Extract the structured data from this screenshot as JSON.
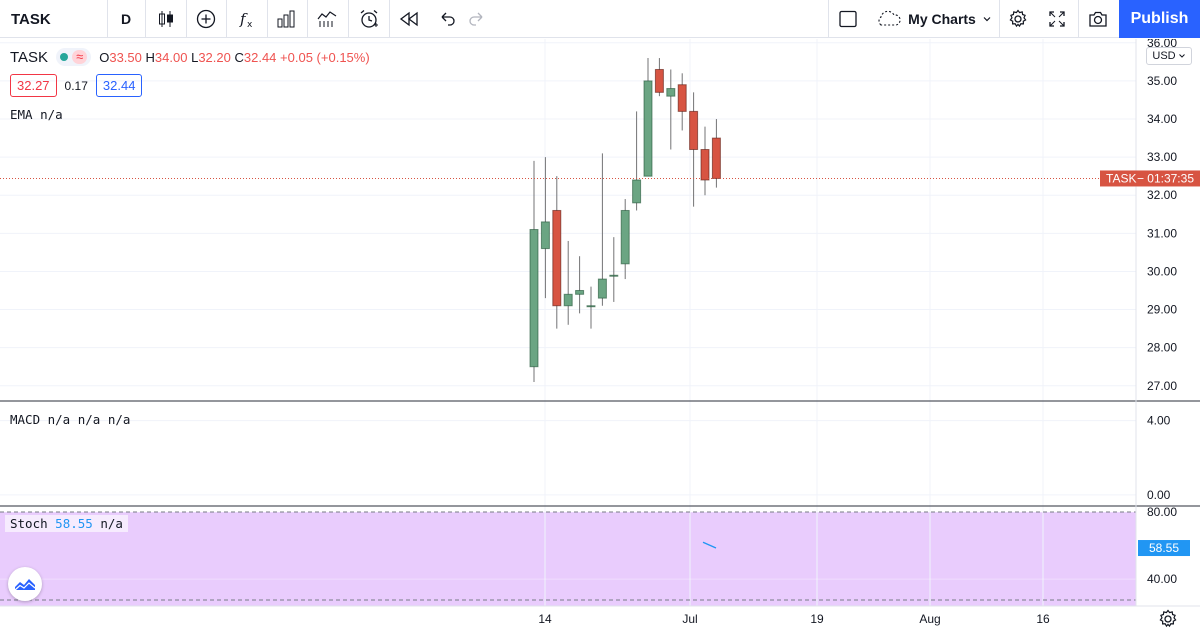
{
  "toolbar": {
    "symbol": "TASK",
    "interval": "D",
    "my_charts": "My Charts",
    "publish": "Publish"
  },
  "legend": {
    "symbol": "TASK",
    "open_label": "O",
    "open": "33.50",
    "high_label": "H",
    "high": "34.00",
    "low_label": "L",
    "low": "32.20",
    "close_label": "C",
    "close": "32.44",
    "change": "+0.05 (+0.15%)",
    "bid": "32.27",
    "spread": "0.17",
    "ask": "32.44",
    "ema": "EMA  n/a",
    "macd": "MACD  n/a  n/a  n/a",
    "stoch_label": "Stoch",
    "stoch_value": "58.55",
    "stoch_na": "n/a"
  },
  "currency": "USD",
  "last_price_label": "TASK",
  "countdown": "01:37:35",
  "colors": {
    "up": "#6ba583",
    "down": "#d75442",
    "accent": "#2962ff",
    "stoch_band": "#e9ccfd"
  },
  "chart_data": [
    {
      "type": "candlestick",
      "title": "TASK",
      "ylabel": "USD",
      "ylim": [
        26.6,
        36.1
      ],
      "yticks": [
        27.0,
        28.0,
        29.0,
        30.0,
        31.0,
        32.0,
        33.0,
        34.0,
        35.0,
        36.0
      ],
      "ytick_labels": [
        "27.00",
        "28.00",
        "29.00",
        "30.00",
        "31.00",
        "32.00",
        "33.00",
        "34.00",
        "35.00",
        "36.00"
      ],
      "xtick_labels": [
        "14",
        "Jul",
        "19",
        "Aug",
        "16"
      ],
      "last_price": 32.44,
      "candles": [
        {
          "o": 27.5,
          "h": 32.9,
          "l": 27.1,
          "c": 31.1
        },
        {
          "o": 30.6,
          "h": 33.0,
          "l": 29.3,
          "c": 31.3
        },
        {
          "o": 31.6,
          "h": 32.5,
          "l": 28.5,
          "c": 29.1
        },
        {
          "o": 29.1,
          "h": 30.8,
          "l": 28.6,
          "c": 29.4
        },
        {
          "o": 29.4,
          "h": 30.4,
          "l": 28.9,
          "c": 29.5
        },
        {
          "o": 29.1,
          "h": 29.6,
          "l": 28.5,
          "c": 29.1
        },
        {
          "o": 29.3,
          "h": 33.1,
          "l": 29.1,
          "c": 29.8
        },
        {
          "o": 29.9,
          "h": 30.9,
          "l": 29.2,
          "c": 29.9
        },
        {
          "o": 30.2,
          "h": 31.9,
          "l": 29.8,
          "c": 31.6
        },
        {
          "o": 31.8,
          "h": 34.2,
          "l": 31.6,
          "c": 32.4
        },
        {
          "o": 32.5,
          "h": 35.6,
          "l": 32.5,
          "c": 35.0
        },
        {
          "o": 35.3,
          "h": 35.6,
          "l": 34.6,
          "c": 34.7
        },
        {
          "o": 34.6,
          "h": 35.3,
          "l": 33.2,
          "c": 34.8
        },
        {
          "o": 34.9,
          "h": 35.2,
          "l": 33.7,
          "c": 34.2
        },
        {
          "o": 34.2,
          "h": 34.7,
          "l": 31.7,
          "c": 33.2
        },
        {
          "o": 33.2,
          "h": 33.8,
          "l": 32.0,
          "c": 32.4
        },
        {
          "o": 33.5,
          "h": 34.0,
          "l": 32.2,
          "c": 32.44
        }
      ]
    },
    {
      "type": "line",
      "title": "MACD",
      "ylim": [
        -0.6,
        5.0
      ],
      "yticks": [
        0.0,
        4.0
      ],
      "ytick_labels": [
        "0.00",
        "4.00"
      ],
      "series": []
    },
    {
      "type": "line",
      "title": "Stoch",
      "ylim": [
        24.0,
        83.0
      ],
      "yticks": [
        40.0,
        80.0
      ],
      "ytick_labels": [
        "40.00",
        "80.00"
      ],
      "band": [
        20,
        80
      ],
      "last_value": 58.55,
      "series": [
        {
          "name": "Stoch",
          "x": [
            14,
            15
          ],
          "values": [
            62.0,
            58.55
          ]
        }
      ]
    }
  ]
}
